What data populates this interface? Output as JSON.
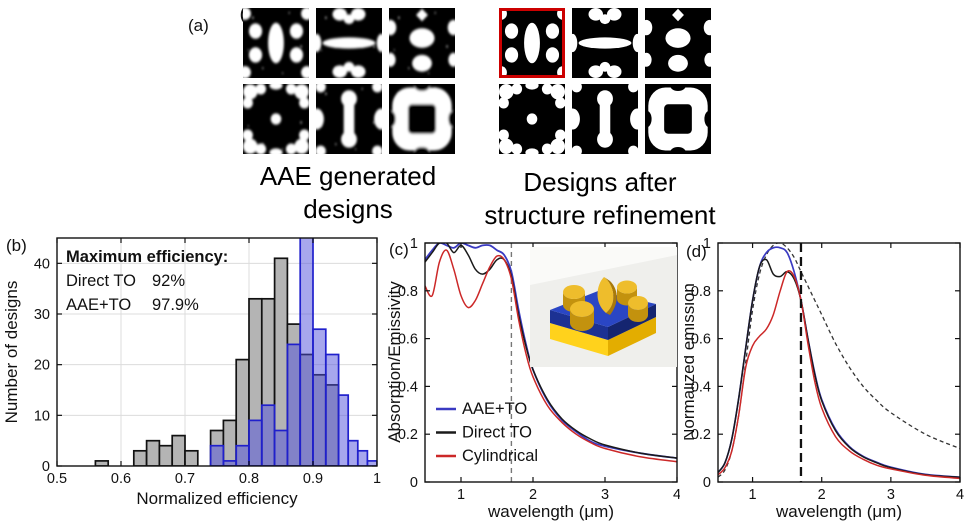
{
  "figure": {
    "background": "#ffffff",
    "panel_a": {
      "label": "(a)",
      "artifact_glyph": "(",
      "groups": [
        {
          "id": "aae",
          "caption_line1": "AAE generated",
          "caption_line2": "designs",
          "tile_style": "fuzzy",
          "tiles": [
            "vertical-lens-array",
            "horizontal-lens-crown",
            "blob-cluster",
            "quatrefoil-cross",
            "vertical-dumbbell",
            "frame-black-center"
          ]
        },
        {
          "id": "refined",
          "caption_line1": "Designs after",
          "caption_line2": "structure refinement",
          "tile_style": "crisp",
          "highlighted_tile_index": 0,
          "highlight_color": "#cc0000",
          "tiles": [
            "vertical-lens-array",
            "horizontal-lens-crown",
            "blob-cluster",
            "quatrefoil-cross",
            "vertical-dumbbell",
            "frame-black-center"
          ]
        }
      ]
    },
    "panel_b_label": "(b)",
    "panel_c_label": "(c)",
    "panel_d_label": "(d)",
    "inset_description": "gold-metasurface-unit-cell-3d-render"
  },
  "chart_data": [
    {
      "id": "b",
      "type": "bar",
      "xlabel": "Normalized efficiency",
      "ylabel": "Number of designs",
      "xlim": [
        0.5,
        1
      ],
      "ylim": [
        0,
        45
      ],
      "xticks": [
        0.5,
        0.6,
        0.7,
        0.8,
        0.9,
        1
      ],
      "yticks": [
        0,
        10,
        20,
        30,
        40
      ],
      "grid": true,
      "legend_title": "Maximum efficiency:",
      "series": [
        {
          "name": "Direct TO",
          "max_label": "92%",
          "fill": "#b4b4b4",
          "edge": "#111111",
          "text_color": "#111111",
          "opacity": 1,
          "bins": [
            [
              0.56,
              0.02,
              1
            ],
            [
              0.62,
              0.02,
              3
            ],
            [
              0.64,
              0.02,
              5
            ],
            [
              0.66,
              0.02,
              4
            ],
            [
              0.68,
              0.02,
              6
            ],
            [
              0.7,
              0.02,
              3
            ],
            [
              0.74,
              0.02,
              7
            ],
            [
              0.76,
              0.02,
              9
            ],
            [
              0.78,
              0.02,
              21
            ],
            [
              0.8,
              0.02,
              33
            ],
            [
              0.82,
              0.02,
              33
            ],
            [
              0.84,
              0.02,
              41
            ],
            [
              0.86,
              0.02,
              28
            ],
            [
              0.88,
              0.02,
              22
            ],
            [
              0.9,
              0.02,
              18
            ],
            [
              0.92,
              0.02,
              16
            ]
          ]
        },
        {
          "name": "AAE+TO",
          "max_label": "97.9%",
          "fill": "#5050dc",
          "edge": "#2020cc",
          "text_color": "#2020dd",
          "opacity": 0.5,
          "bins": [
            [
              0.74,
              0.02,
              4
            ],
            [
              0.76,
              0.02,
              1
            ],
            [
              0.78,
              0.02,
              4
            ],
            [
              0.8,
              0.02,
              9
            ],
            [
              0.82,
              0.02,
              12
            ],
            [
              0.84,
              0.02,
              7
            ],
            [
              0.86,
              0.02,
              24
            ],
            [
              0.88,
              0.02,
              46
            ],
            [
              0.9,
              0.02,
              27
            ],
            [
              0.92,
              0.02,
              22
            ],
            [
              0.94,
              0.015,
              14
            ],
            [
              0.955,
              0.015,
              5
            ],
            [
              0.97,
              0.015,
              3
            ],
            [
              0.985,
              0.015,
              1
            ]
          ]
        }
      ]
    },
    {
      "id": "c",
      "type": "line",
      "xlabel": "wavelength (μm)",
      "ylabel": "Absorption/Emissivity",
      "xlim": [
        0.5,
        4
      ],
      "ylim": [
        0,
        1
      ],
      "xticks": [
        1,
        2,
        3,
        4
      ],
      "yticks": [
        0,
        0.2,
        0.4,
        0.6,
        0.8,
        1
      ],
      "grid": false,
      "show_line_legend": true,
      "vline": {
        "x": 1.7,
        "color": "#777777",
        "dash": "5 4",
        "width": 1.4,
        "front": false
      },
      "x": [
        0.5,
        0.6,
        0.7,
        0.8,
        0.9,
        1.0,
        1.1,
        1.2,
        1.3,
        1.4,
        1.5,
        1.6,
        1.7,
        1.8,
        1.9,
        2.0,
        2.2,
        2.4,
        2.6,
        2.8,
        3.0,
        3.5,
        4.0
      ],
      "series": [
        {
          "name": "AAE+TO",
          "color": "#3a3ac2",
          "width": 1.8,
          "y": [
            0.93,
            0.97,
            1.0,
            0.99,
            0.98,
            1.0,
            0.99,
            0.98,
            0.99,
            0.99,
            0.97,
            0.95,
            0.88,
            0.72,
            0.58,
            0.47,
            0.34,
            0.26,
            0.21,
            0.17,
            0.15,
            0.12,
            0.1
          ]
        },
        {
          "name": "Direct TO",
          "color": "#1a1a1a",
          "width": 1.5,
          "y": [
            0.92,
            0.96,
            1.0,
            1.0,
            0.96,
            0.99,
            0.95,
            0.89,
            0.87,
            0.89,
            0.93,
            0.93,
            0.86,
            0.7,
            0.57,
            0.47,
            0.345,
            0.265,
            0.215,
            0.18,
            0.155,
            0.12,
            0.1
          ]
        },
        {
          "name": "Cylindrical",
          "color": "#cc2828",
          "width": 1.5,
          "y": [
            0.82,
            0.78,
            0.92,
            0.97,
            0.89,
            0.78,
            0.73,
            0.76,
            0.83,
            0.9,
            0.945,
            0.93,
            0.85,
            0.68,
            0.54,
            0.44,
            0.32,
            0.25,
            0.2,
            0.165,
            0.14,
            0.105,
            0.085
          ]
        }
      ]
    },
    {
      "id": "d",
      "type": "line",
      "xlabel": "wavelength (μm)",
      "ylabel": "Normalized emission",
      "xlim": [
        0.5,
        4
      ],
      "ylim": [
        0,
        1
      ],
      "xticks": [
        1,
        2,
        3,
        4
      ],
      "yticks": [
        0,
        0.2,
        0.4,
        0.6,
        0.8,
        1
      ],
      "grid": false,
      "show_line_legend": false,
      "vline": {
        "x": 1.7,
        "color": "#111111",
        "dash": "9 5",
        "width": 2.3,
        "front": true
      },
      "x": [
        0.5,
        0.6,
        0.7,
        0.8,
        0.9,
        1.0,
        1.1,
        1.2,
        1.3,
        1.4,
        1.5,
        1.6,
        1.7,
        1.8,
        1.9,
        2.0,
        2.2,
        2.4,
        2.6,
        2.8,
        3.0,
        3.5,
        4.0
      ],
      "series": [
        {
          "name": "dashed-reference",
          "color": "#333333",
          "width": 1.3,
          "dash": "4 3",
          "y": [
            0.02,
            0.05,
            0.13,
            0.28,
            0.5,
            0.72,
            0.87,
            0.95,
            0.99,
            1.0,
            0.98,
            0.94,
            0.88,
            0.82,
            0.76,
            0.7,
            0.58,
            0.48,
            0.4,
            0.34,
            0.29,
            0.2,
            0.14
          ]
        },
        {
          "name": "AAE+TO",
          "color": "#3a3ac2",
          "width": 1.7,
          "y": [
            0.04,
            0.08,
            0.18,
            0.35,
            0.56,
            0.76,
            0.9,
            0.96,
            0.98,
            0.98,
            0.96,
            0.88,
            0.76,
            0.6,
            0.455,
            0.345,
            0.22,
            0.148,
            0.107,
            0.082,
            0.062,
            0.032,
            0.02
          ]
        },
        {
          "name": "Direct TO",
          "color": "#1a1a1a",
          "width": 1.5,
          "y": [
            0.04,
            0.08,
            0.18,
            0.35,
            0.56,
            0.76,
            0.9,
            0.93,
            0.87,
            0.86,
            0.88,
            0.85,
            0.76,
            0.6,
            0.45,
            0.34,
            0.215,
            0.145,
            0.105,
            0.08,
            0.06,
            0.03,
            0.02
          ]
        },
        {
          "name": "Cylindrical",
          "color": "#cc2828",
          "width": 1.5,
          "y": [
            0.03,
            0.06,
            0.13,
            0.28,
            0.48,
            0.57,
            0.61,
            0.64,
            0.7,
            0.8,
            0.88,
            0.86,
            0.76,
            0.58,
            0.42,
            0.31,
            0.19,
            0.13,
            0.095,
            0.07,
            0.055,
            0.028,
            0.015
          ]
        }
      ]
    }
  ]
}
